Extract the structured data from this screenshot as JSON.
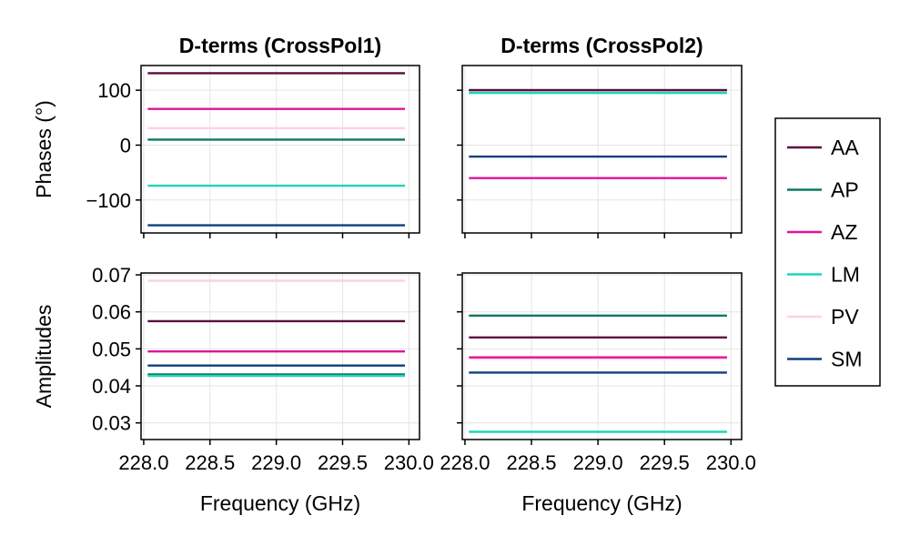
{
  "chart_data": [
    {
      "type": "line",
      "title": "D-terms (CrossPol1)",
      "xlabel": "",
      "ylabel": "Phases (°)",
      "xlim": [
        227.98,
        230.08
      ],
      "ylim": [
        -160,
        145
      ],
      "xticks": [
        228.0,
        228.5,
        229.0,
        229.5,
        230.0
      ],
      "xtick_labels": [],
      "yticks": [
        100,
        0,
        -100
      ],
      "ytick_labels": [
        "100",
        "0",
        "−100"
      ],
      "grid": true,
      "series": [
        {
          "name": "AA",
          "x": [
            228.03,
            229.97
          ],
          "y": [
            131,
            131
          ]
        },
        {
          "name": "AP",
          "x": [
            228.03,
            229.97
          ],
          "y": [
            10,
            10
          ]
        },
        {
          "name": "AZ",
          "x": [
            228.03,
            229.97
          ],
          "y": [
            66,
            66
          ]
        },
        {
          "name": "LM",
          "x": [
            228.03,
            229.97
          ],
          "y": [
            -74,
            -74
          ]
        },
        {
          "name": "PV",
          "x": [
            228.03,
            229.97
          ],
          "y": [
            31,
            31
          ]
        },
        {
          "name": "SM",
          "x": [
            228.03,
            229.97
          ],
          "y": [
            -146,
            -146
          ]
        }
      ]
    },
    {
      "type": "line",
      "title": "D-terms (CrossPol2)",
      "xlabel": "",
      "ylabel": "",
      "xlim": [
        227.98,
        230.08
      ],
      "ylim": [
        -160,
        145
      ],
      "xticks": [
        228.0,
        228.5,
        229.0,
        229.5,
        230.0
      ],
      "xtick_labels": [],
      "yticks": [
        100,
        0,
        -100
      ],
      "ytick_labels": [],
      "grid": true,
      "series": [
        {
          "name": "AA",
          "x": [
            228.03,
            229.97
          ],
          "y": [
            100,
            100
          ]
        },
        {
          "name": "AP",
          "x": [
            228.03,
            229.97
          ],
          "y": [
            100,
            100
          ]
        },
        {
          "name": "AZ",
          "x": [
            228.03,
            229.97
          ],
          "y": [
            -60,
            -60
          ]
        },
        {
          "name": "LM",
          "x": [
            228.03,
            229.97
          ],
          "y": [
            95,
            95
          ]
        },
        {
          "name": "PV",
          "x": [
            228.03,
            229.97
          ],
          "y": [
            100,
            100
          ]
        },
        {
          "name": "SM",
          "x": [
            228.03,
            229.97
          ],
          "y": [
            -21,
            -21
          ]
        }
      ]
    },
    {
      "type": "line",
      "title": "",
      "xlabel": "Frequency (GHz)",
      "ylabel": "Amplitudes",
      "xlim": [
        227.98,
        230.08
      ],
      "ylim": [
        0.0255,
        0.0705
      ],
      "xticks": [
        228.0,
        228.5,
        229.0,
        229.5,
        230.0
      ],
      "xtick_labels": [
        "228.0",
        "228.5",
        "229.0",
        "229.5",
        "230.0"
      ],
      "yticks": [
        0.07,
        0.06,
        0.05,
        0.04,
        0.03
      ],
      "ytick_labels": [
        "0.07",
        "0.06",
        "0.05",
        "0.04",
        "0.03"
      ],
      "grid": true,
      "series": [
        {
          "name": "AA",
          "x": [
            228.03,
            229.97
          ],
          "y": [
            0.0575,
            0.0575
          ]
        },
        {
          "name": "AP",
          "x": [
            228.03,
            229.97
          ],
          "y": [
            0.0431,
            0.0431
          ]
        },
        {
          "name": "AZ",
          "x": [
            228.03,
            229.97
          ],
          "y": [
            0.0493,
            0.0493
          ]
        },
        {
          "name": "LM",
          "x": [
            228.03,
            229.97
          ],
          "y": [
            0.0427,
            0.0427
          ]
        },
        {
          "name": "PV",
          "x": [
            228.03,
            229.97
          ],
          "y": [
            0.0684,
            0.0684
          ]
        },
        {
          "name": "SM",
          "x": [
            228.03,
            229.97
          ],
          "y": [
            0.0455,
            0.0455
          ]
        }
      ]
    },
    {
      "type": "line",
      "title": "",
      "xlabel": "Frequency (GHz)",
      "ylabel": "",
      "xlim": [
        227.98,
        230.08
      ],
      "ylim": [
        0.0255,
        0.0705
      ],
      "xticks": [
        228.0,
        228.5,
        229.0,
        229.5,
        230.0
      ],
      "xtick_labels": [
        "228.0",
        "228.5",
        "229.0",
        "229.5",
        "230.0"
      ],
      "yticks": [
        0.07,
        0.06,
        0.05,
        0.04,
        0.03
      ],
      "ytick_labels": [],
      "grid": true,
      "series": [
        {
          "name": "AA",
          "x": [
            228.03,
            229.97
          ],
          "y": [
            0.0531,
            0.0531
          ]
        },
        {
          "name": "AP",
          "x": [
            228.03,
            229.97
          ],
          "y": [
            0.059,
            0.059
          ]
        },
        {
          "name": "AZ",
          "x": [
            228.03,
            229.97
          ],
          "y": [
            0.0477,
            0.0477
          ]
        },
        {
          "name": "LM",
          "x": [
            228.03,
            229.97
          ],
          "y": [
            0.0276,
            0.0276
          ]
        },
        {
          "name": "PV",
          "x": [
            228.03,
            229.97
          ],
          "y": [
            0.0473,
            0.0473
          ]
        },
        {
          "name": "SM",
          "x": [
            228.03,
            229.97
          ],
          "y": [
            0.0436,
            0.0436
          ]
        }
      ]
    }
  ],
  "legend": {
    "placement": "right",
    "items": [
      {
        "label": "AA",
        "color": "#5c0a3e"
      },
      {
        "label": "AP",
        "color": "#0b7a62"
      },
      {
        "label": "AZ",
        "color": "#e0149a"
      },
      {
        "label": "LM",
        "color": "#1dd6b8"
      },
      {
        "label": "PV",
        "color": "#fcd2e2"
      },
      {
        "label": "SM",
        "color": "#0f3f7d"
      }
    ]
  },
  "colors": {
    "grid": "#e4e4e4",
    "frame": "#000000",
    "background": "#ffffff"
  }
}
